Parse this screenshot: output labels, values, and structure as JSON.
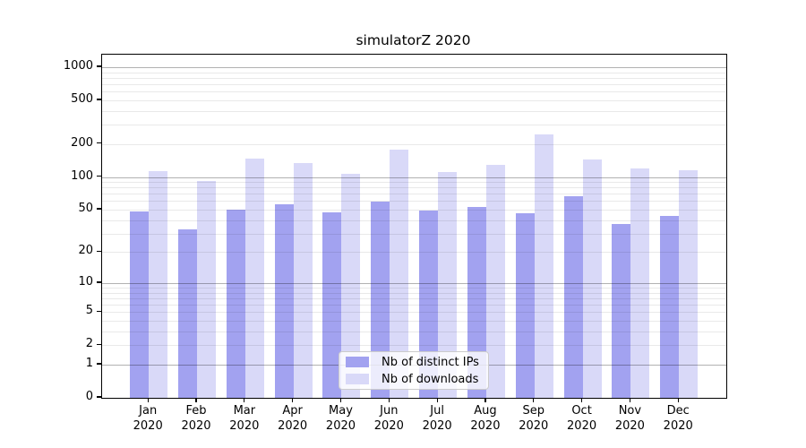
{
  "title": "simulatorZ 2020",
  "chart_data": {
    "type": "bar",
    "title": "simulatorZ 2020",
    "categories": [
      "Jan",
      "Feb",
      "Mar",
      "Apr",
      "May",
      "Jun",
      "Jul",
      "Aug",
      "Sep",
      "Oct",
      "Nov",
      "Dec"
    ],
    "x_tick_second_line": "2020",
    "series": [
      {
        "name": "Nb of distinct IPs",
        "color": "#a2a2f0",
        "values": [
          48,
          33,
          50,
          56,
          47,
          59,
          49,
          53,
          46,
          67,
          37,
          44
        ]
      },
      {
        "name": "Nb of downloads",
        "color": "#d9d9f8",
        "values": [
          114,
          92,
          148,
          135,
          106,
          178,
          110,
          130,
          243,
          145,
          120,
          115
        ]
      }
    ],
    "y_axis": {
      "scale": "log1p",
      "labeled_ticks": [
        0,
        1,
        2,
        5,
        10,
        20,
        50,
        100,
        200,
        500,
        1000
      ],
      "minor_ticks": [
        3,
        4,
        6,
        7,
        8,
        9,
        30,
        40,
        60,
        70,
        80,
        90,
        300,
        400,
        600,
        700,
        800,
        900
      ],
      "decade_ticks": [
        1,
        10,
        100,
        1000
      ],
      "ylim_top": 1300
    },
    "legend": {
      "position": "inside-bottom-center",
      "entries": [
        "Nb of distinct IPs",
        "Nb of downloads"
      ]
    },
    "grid": true
  }
}
